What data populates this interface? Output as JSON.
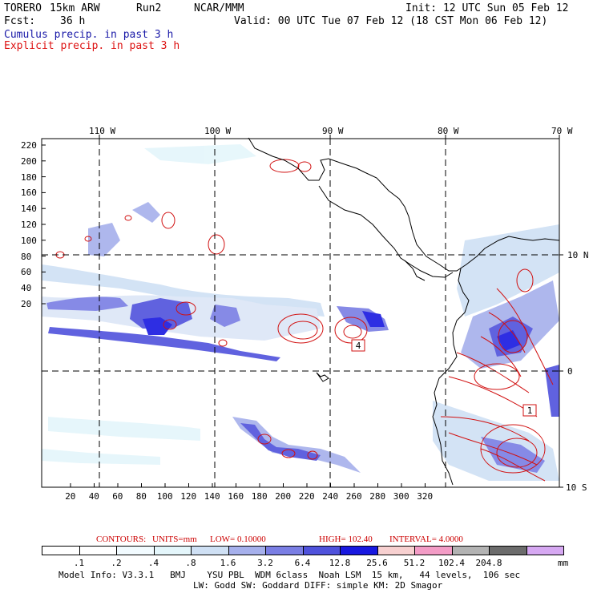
{
  "header": {
    "model": "TORERO",
    "resolution": "15km ARW",
    "run": "Run2",
    "org": "NCAR/MMM",
    "init": "Init: 12 UTC Sun 05 Feb 12",
    "fcst_label": "Fcst:",
    "fcst_value": "36 h",
    "valid": "Valid: 00 UTC Tue 07 Feb 12 (18 CST Mon 06 Feb 12)"
  },
  "legend": {
    "cumulus": "Cumulus precip. in past 3 h",
    "explicit": "Explicit precip. in past 3 h"
  },
  "colors": {
    "cumulus": "#1a1aa8",
    "explicit": "#d11111",
    "coastline": "#000000"
  },
  "map": {
    "lon_labels": [
      "110 W",
      "100 W",
      "90 W",
      "80 W",
      "70 W"
    ],
    "lat_labels": [
      "10 N",
      "0",
      "10 S"
    ],
    "y_ticks": [
      "220",
      "200",
      "180",
      "160",
      "140",
      "120",
      "100",
      "80",
      "60",
      "40",
      "20"
    ],
    "x_ticks": [
      "20",
      "40",
      "60",
      "80",
      "100",
      "120",
      "140",
      "160",
      "180",
      "200",
      "220",
      "240",
      "260",
      "280",
      "300",
      "320"
    ],
    "contour_labels": [
      "4",
      "1"
    ]
  },
  "colorbar": {
    "contours_title": "CONTOURS:",
    "units": "UNITS=mm",
    "low": "LOW= 0.10000",
    "high": "HIGH= 102.40",
    "interval": "INTERVAL= 4.0000",
    "labels": [
      ".1",
      ".2",
      ".4",
      ".8",
      "1.6",
      "3.2",
      "6.4",
      "12.8",
      "25.6",
      "51.2",
      "102.4",
      "204.8"
    ],
    "unit_label": "mm",
    "fill_colors": [
      "#ffffff",
      "#ffffff",
      "#f2fbff",
      "#e4f6fb",
      "#cfe0f4",
      "#a6b0ec",
      "#7a7ee4",
      "#4f52dc",
      "#1818e0",
      "#f7d0d0",
      "#f39cc6",
      "#b3b3b3",
      "#6c6c6c",
      "#d6a8f2"
    ]
  },
  "footer": {
    "line1": "Model Info: V3.3.1   BMJ    YSU PBL  WDM 6class  Noah LSM  15 km,   44 levels,  106 sec",
    "line2": "LW: Godd SW: Goddard DIFF: simple KM: 2D Smagor"
  }
}
